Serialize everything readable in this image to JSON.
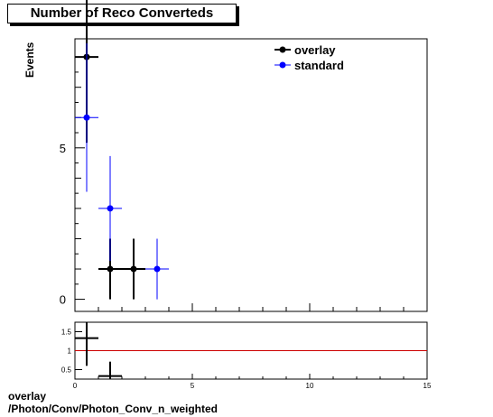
{
  "title": "Number of Reco Converteds",
  "footer": {
    "line1": "overlay",
    "line2": "/Photon/Conv/Photon_Conv_n_weighted"
  },
  "colors": {
    "overlay": "#000000",
    "standard": "#0000ff",
    "ratio_line": "#cc0000"
  },
  "chart_data": [
    {
      "type": "scatter",
      "ylabel": "Events",
      "xlim": [
        0,
        15
      ],
      "ylim": [
        -0.4,
        8.6
      ],
      "y_ticks": [
        0,
        5
      ],
      "legend_position": "top-right",
      "series": [
        {
          "name": "overlay",
          "color": "#000000",
          "points": [
            {
              "x": 0.5,
              "y": 8,
              "xerr": 0.5,
              "yerr": 2.83
            },
            {
              "x": 1.5,
              "y": 1,
              "xerr": 0.5,
              "yerr": 1.0
            },
            {
              "x": 2.5,
              "y": 1,
              "xerr": 0.5,
              "yerr": 1.0
            }
          ]
        },
        {
          "name": "standard",
          "color": "#0000ff",
          "points": [
            {
              "x": 0.5,
              "y": 6,
              "xerr": 0.5,
              "yerr": 2.45
            },
            {
              "x": 1.5,
              "y": 3,
              "xerr": 0.5,
              "yerr": 1.73
            },
            {
              "x": 3.5,
              "y": 1,
              "xerr": 0.5,
              "yerr": 1.0
            }
          ]
        }
      ]
    },
    {
      "type": "scatter",
      "xlim": [
        0,
        15
      ],
      "ylim": [
        0.25,
        1.75
      ],
      "x_ticks": [
        0,
        5,
        10,
        15
      ],
      "y_ticks": [
        0.5,
        1,
        1.5
      ],
      "reference_line": 1,
      "series": [
        {
          "name": "ratio",
          "color": "#000000",
          "points": [
            {
              "x": 0.5,
              "y": 1.33,
              "xerr": 0.5,
              "yerr": 0.73
            },
            {
              "x": 1.5,
              "y": 0.33,
              "xerr": 0.5,
              "yerr": 0.38
            }
          ]
        }
      ]
    }
  ]
}
